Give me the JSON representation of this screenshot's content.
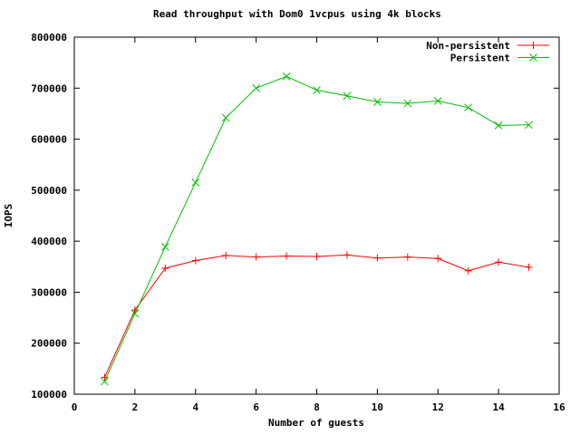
{
  "chart_data": {
    "type": "line",
    "title": "Read throughput with Dom0 1vcpus using 4k blocks",
    "xlabel": "Number of guests",
    "ylabel": "IOPS",
    "xlim": [
      0,
      16
    ],
    "ylim": [
      100000,
      800000
    ],
    "xtick_step": 2,
    "ytick_step": 100000,
    "grid": false,
    "legend_position": "top-right-inside",
    "background_color": "#ffffff",
    "axis_color": "#000000",
    "x": [
      1,
      2,
      3,
      4,
      5,
      6,
      7,
      8,
      9,
      10,
      11,
      12,
      13,
      14,
      15
    ],
    "series": [
      {
        "name": "Non-persistent",
        "color": "#ff0000",
        "marker": "plus",
        "values": [
          133000,
          265000,
          347000,
          362000,
          372000,
          369000,
          371000,
          370000,
          373000,
          367000,
          369000,
          366000,
          342000,
          359000,
          349000
        ]
      },
      {
        "name": "Persistent",
        "color": "#00c000",
        "marker": "x",
        "values": [
          125000,
          258000,
          389000,
          515000,
          642000,
          700000,
          723000,
          696000,
          685000,
          673000,
          670000,
          675000,
          662000,
          627000,
          628000
        ]
      }
    ]
  }
}
